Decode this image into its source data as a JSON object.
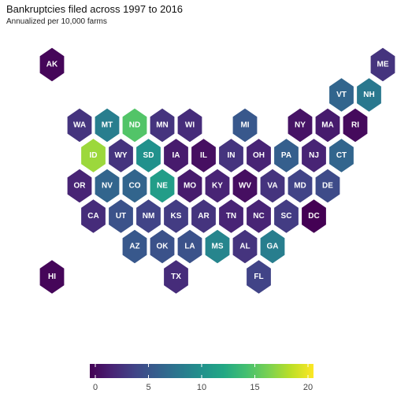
{
  "title": "Bankruptcies filed across 1997 to 2016",
  "subtitle": "Annualized per 10,000 farms",
  "legend": {
    "min": 0,
    "max": 20,
    "ticks": [
      "0",
      "5",
      "10",
      "15",
      "20"
    ],
    "colormap": "viridis"
  },
  "chart_data": {
    "type": "heatmap",
    "layout": "hexagonal tile grid map of US states",
    "title": "Bankruptcies filed across 1997 to 2016",
    "subtitle": "Annualized per 10,000 farms",
    "scale": [
      0,
      20
    ],
    "states": [
      {
        "state": "AK",
        "row": 0,
        "col": 0,
        "value": 0.3
      },
      {
        "state": "ME",
        "row": 0,
        "col": 12,
        "value": 3.0
      },
      {
        "state": "VT",
        "row": 1,
        "col": 10.5,
        "value": 6.5
      },
      {
        "state": "NH",
        "row": 1,
        "col": 11.5,
        "value": 8.0
      },
      {
        "state": "WA",
        "row": 2,
        "col": 1,
        "value": 3.0
      },
      {
        "state": "MT",
        "row": 2,
        "col": 2,
        "value": 8.5
      },
      {
        "state": "ND",
        "row": 2,
        "col": 3,
        "value": 14.5
      },
      {
        "state": "MN",
        "row": 2,
        "col": 4,
        "value": 3.0
      },
      {
        "state": "WI",
        "row": 2,
        "col": 5,
        "value": 2.5
      },
      {
        "state": "MI",
        "row": 2,
        "col": 7,
        "value": 5.5
      },
      {
        "state": "NY",
        "row": 2,
        "col": 9,
        "value": 1.0
      },
      {
        "state": "MA",
        "row": 2,
        "col": 10,
        "value": 1.5
      },
      {
        "state": "RI",
        "row": 2,
        "col": 11,
        "value": 0.5
      },
      {
        "state": "ID",
        "row": 3,
        "col": 1.5,
        "value": 17.0
      },
      {
        "state": "WY",
        "row": 3,
        "col": 2.5,
        "value": 3.0
      },
      {
        "state": "SD",
        "row": 3,
        "col": 3.5,
        "value": 10.0
      },
      {
        "state": "IA",
        "row": 3,
        "col": 4.5,
        "value": 1.5
      },
      {
        "state": "IL",
        "row": 3,
        "col": 5.5,
        "value": 0.8
      },
      {
        "state": "IN",
        "row": 3,
        "col": 6.5,
        "value": 3.0
      },
      {
        "state": "OH",
        "row": 3,
        "col": 7.5,
        "value": 2.0
      },
      {
        "state": "PA",
        "row": 3,
        "col": 8.5,
        "value": 6.0
      },
      {
        "state": "NJ",
        "row": 3,
        "col": 9.5,
        "value": 2.0
      },
      {
        "state": "CT",
        "row": 3,
        "col": 10.5,
        "value": 6.5
      },
      {
        "state": "OR",
        "row": 4,
        "col": 1,
        "value": 2.0
      },
      {
        "state": "NV",
        "row": 4,
        "col": 2,
        "value": 6.5
      },
      {
        "state": "CO",
        "row": 4,
        "col": 3,
        "value": 6.5
      },
      {
        "state": "NE",
        "row": 4,
        "col": 4,
        "value": 11.0
      },
      {
        "state": "MO",
        "row": 4,
        "col": 5,
        "value": 1.5
      },
      {
        "state": "KY",
        "row": 4,
        "col": 6,
        "value": 2.0
      },
      {
        "state": "WV",
        "row": 4,
        "col": 7,
        "value": 0.8
      },
      {
        "state": "VA",
        "row": 4,
        "col": 8,
        "value": 3.0
      },
      {
        "state": "MD",
        "row": 4,
        "col": 9,
        "value": 4.0
      },
      {
        "state": "DE",
        "row": 4,
        "col": 10,
        "value": 4.5
      },
      {
        "state": "CA",
        "row": 5,
        "col": 1.5,
        "value": 2.5
      },
      {
        "state": "UT",
        "row": 5,
        "col": 2.5,
        "value": 5.0
      },
      {
        "state": "NM",
        "row": 5,
        "col": 3.5,
        "value": 4.0
      },
      {
        "state": "KS",
        "row": 5,
        "col": 4.5,
        "value": 3.5
      },
      {
        "state": "AR",
        "row": 5,
        "col": 5.5,
        "value": 3.0
      },
      {
        "state": "TN",
        "row": 5,
        "col": 6.5,
        "value": 2.0
      },
      {
        "state": "NC",
        "row": 5,
        "col": 7.5,
        "value": 2.0
      },
      {
        "state": "SC",
        "row": 5,
        "col": 8.5,
        "value": 3.5
      },
      {
        "state": "DC",
        "row": 5,
        "col": 9.5,
        "value": 0.0
      },
      {
        "state": "AZ",
        "row": 6,
        "col": 3,
        "value": 5.5
      },
      {
        "state": "OK",
        "row": 6,
        "col": 4,
        "value": 5.0
      },
      {
        "state": "LA",
        "row": 6,
        "col": 5,
        "value": 5.0
      },
      {
        "state": "MS",
        "row": 6,
        "col": 6,
        "value": 9.0
      },
      {
        "state": "AL",
        "row": 6,
        "col": 7,
        "value": 3.0
      },
      {
        "state": "GA",
        "row": 6,
        "col": 8,
        "value": 8.5
      },
      {
        "state": "HI",
        "row": 7,
        "col": 0,
        "value": 0.3
      },
      {
        "state": "TX",
        "row": 7,
        "col": 4.5,
        "value": 2.5
      },
      {
        "state": "FL",
        "row": 7,
        "col": 7.5,
        "value": 4.0
      }
    ]
  }
}
